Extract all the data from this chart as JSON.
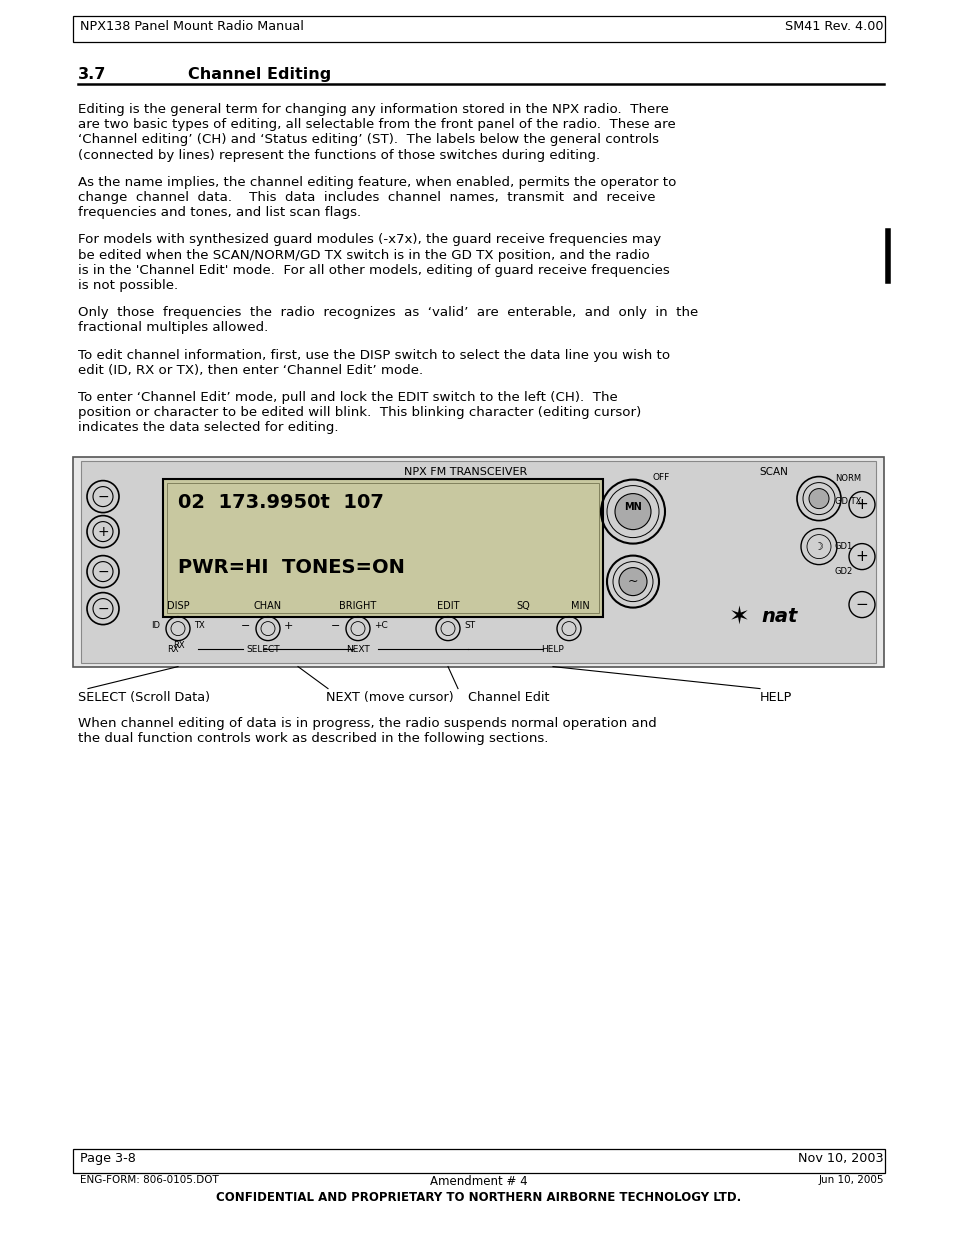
{
  "header_left": "NPX138 Panel Mount Radio Manual",
  "header_right": "SM41 Rev. 4.00",
  "section_number": "3.7",
  "section_title": "Channel Editing",
  "para1": "Editing is the general term for changing any information stored in the NPX radio.  There\nare two basic types of editing, all selectable from the front panel of the radio.  These are\n‘Channel editing’ (CH) and ‘Status editing’ (ST).  The labels below the general controls\n(connected by lines) represent the functions of those switches during editing.",
  "para2": "As the name implies, the channel editing feature, when enabled, permits the operator to\nchange  channel  data.    This  data  includes  channel  names,  transmit  and  receive\nfrequencies and tones, and list scan flags.",
  "para3": "For models with synthesized guard modules (-x7x), the guard receive frequencies may\nbe edited when the SCAN/NORM/GD TX switch is in the GD TX position, and the radio\nis in the 'Channel Edit' mode.  For all other models, editing of guard receive frequencies\nis not possible.",
  "para4": "Only  those  frequencies  the  radio  recognizes  as  ‘valid’  are  enterable,  and  only  in  the\nfractional multiples allowed.",
  "para5": "To edit channel information, first, use the DISP switch to select the data line you wish to\nedit (ID, RX or TX), then enter ‘Channel Edit’ mode.",
  "para6": "To enter ‘Channel Edit’ mode, pull and lock the EDIT switch to the left (CH).  The\nposition or character to be edited will blink.  This blinking character (editing cursor)\nindicates the data selected for editing.",
  "lcd_line1": "02  173.9950t  107",
  "lcd_line2": "PWR=HI  TONES=ON",
  "caption_select": "SELECT (Scroll Data)",
  "caption_next": "NEXT (move cursor)",
  "caption_ch_edit": "Channel Edit",
  "caption_help": "HELP",
  "para_after_image_1": "When channel editing of data is in progress, the radio suspends normal operation and",
  "para_after_image_2": "the dual function controls work as described in the following sections.",
  "footer_page": "Page 3-8",
  "footer_date": "Nov 10, 2003",
  "footer2_left": "ENG-FORM: 806-0105.DOT",
  "footer2_center": "Amendment # 4",
  "footer2_right": "Jun 10, 2005",
  "footer3": "CONFIDENTIAL AND PROPRIETARY TO NORTHERN AIRBORNE TECHNOLOGY LTD.",
  "bg_color": "#ffffff"
}
